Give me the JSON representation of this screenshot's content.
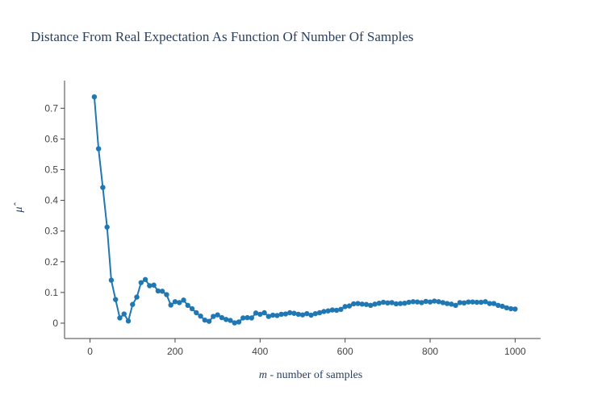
{
  "chart_data": {
    "type": "line",
    "title": "Distance From Real Expectation As Function Of Number Of Samples",
    "xlabel_var": "m",
    "xlabel_rest": " - number of samples",
    "ylabel": "μ̂",
    "xlim": [
      -60,
      1060
    ],
    "ylim": [
      -0.05,
      0.79
    ],
    "xticks": [
      0,
      200,
      400,
      600,
      800,
      1000
    ],
    "yticks": [
      0,
      0.1,
      0.2,
      0.3,
      0.4,
      0.5,
      0.6,
      0.7
    ],
    "ytick_labels": [
      "0",
      "0.1",
      "0.2",
      "0.3",
      "0.4",
      "0.5",
      "0.6",
      "0.7"
    ],
    "marker": "circle",
    "line_color": "#1f77b4",
    "series": [
      {
        "x": [
          10,
          20,
          30,
          40,
          50,
          60,
          70,
          80,
          90,
          100,
          110,
          120,
          130,
          140,
          150,
          160,
          170,
          180,
          190,
          200,
          210,
          220,
          230,
          240,
          250,
          260,
          270,
          280,
          290,
          300,
          310,
          320,
          330,
          340,
          350,
          360,
          370,
          380,
          390,
          400,
          410,
          420,
          430,
          440,
          450,
          460,
          470,
          480,
          490,
          500,
          510,
          520,
          530,
          540,
          550,
          560,
          570,
          580,
          590,
          600,
          610,
          620,
          630,
          640,
          650,
          660,
          670,
          680,
          690,
          700,
          710,
          720,
          730,
          740,
          750,
          760,
          770,
          780,
          790,
          800,
          810,
          820,
          830,
          840,
          850,
          860,
          870,
          880,
          890,
          900,
          910,
          920,
          930,
          940,
          950,
          960,
          970,
          980,
          990,
          1000
        ],
        "y": [
          0.737,
          0.568,
          0.442,
          0.313,
          0.14,
          0.077,
          0.017,
          0.03,
          0.007,
          0.061,
          0.085,
          0.132,
          0.142,
          0.122,
          0.124,
          0.105,
          0.104,
          0.093,
          0.059,
          0.07,
          0.067,
          0.075,
          0.058,
          0.047,
          0.034,
          0.023,
          0.01,
          0.006,
          0.022,
          0.027,
          0.018,
          0.012,
          0.009,
          0.001,
          0.004,
          0.017,
          0.018,
          0.017,
          0.033,
          0.029,
          0.034,
          0.022,
          0.026,
          0.025,
          0.029,
          0.03,
          0.034,
          0.032,
          0.029,
          0.027,
          0.031,
          0.026,
          0.031,
          0.034,
          0.038,
          0.04,
          0.043,
          0.042,
          0.045,
          0.054,
          0.056,
          0.063,
          0.064,
          0.062,
          0.061,
          0.058,
          0.062,
          0.065,
          0.068,
          0.066,
          0.067,
          0.063,
          0.064,
          0.065,
          0.068,
          0.07,
          0.069,
          0.067,
          0.071,
          0.069,
          0.072,
          0.07,
          0.067,
          0.064,
          0.062,
          0.058,
          0.067,
          0.066,
          0.069,
          0.069,
          0.068,
          0.068,
          0.07,
          0.064,
          0.064,
          0.058,
          0.055,
          0.05,
          0.047,
          0.046
        ]
      }
    ]
  }
}
